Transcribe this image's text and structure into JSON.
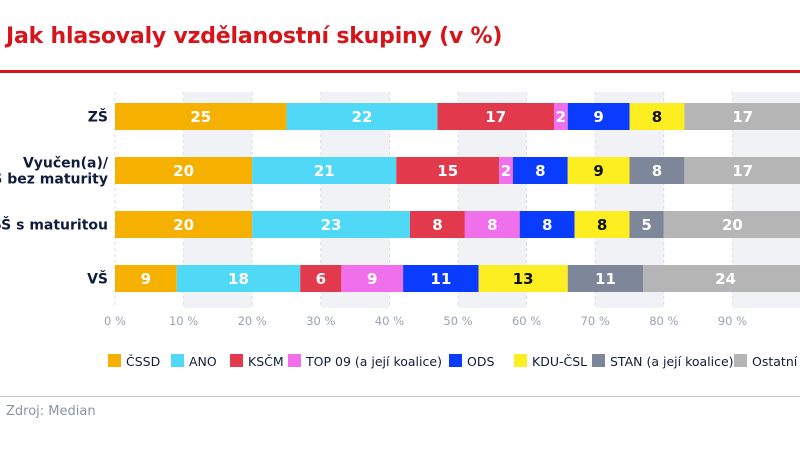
{
  "title": "Jak hlasovaly vzdělanostní skupiny (v %)",
  "source": "Zdroj: Median",
  "chart_data": {
    "type": "bar",
    "orientation": "horizontal",
    "stacked": true,
    "categories": [
      "ZŠ",
      "Vyučen(a)/\nSŠ bez maturity",
      "SŠ s maturitou",
      "VŠ"
    ],
    "xlim": [
      0,
      100
    ],
    "x_ticks": [
      "0 %",
      "10 %",
      "20 %",
      "30 %",
      "40 %",
      "50 %",
      "60 %",
      "70 %",
      "80 %",
      "90 %"
    ],
    "legend_position": "bottom",
    "series": [
      {
        "name": "ČSSD",
        "color": "#f6b000",
        "label_color": "#ffffff",
        "values": [
          25,
          20,
          20,
          9
        ]
      },
      {
        "name": "ANO",
        "color": "#4fd9f7",
        "label_color": "#ffffff",
        "values": [
          22,
          21,
          23,
          18
        ]
      },
      {
        "name": "KSČM",
        "color": "#e23a4c",
        "label_color": "#ffffff",
        "values": [
          17,
          15,
          8,
          6
        ]
      },
      {
        "name": "TOP 09 (a její koalice)",
        "color": "#f070ec",
        "label_color": "#ffffff",
        "values": [
          2,
          2,
          8,
          9
        ]
      },
      {
        "name": "ODS",
        "color": "#0a3cff",
        "label_color": "#ffffff",
        "values": [
          9,
          8,
          8,
          11
        ]
      },
      {
        "name": "KDU-ČSL",
        "color": "#fcee21",
        "label_color": "#111111",
        "values": [
          8,
          9,
          8,
          13
        ]
      },
      {
        "name": "STAN (a její koalice)",
        "color": "#7d8799",
        "label_color": "#ffffff",
        "values": [
          0,
          8,
          5,
          11
        ]
      },
      {
        "name": "Ostatní",
        "color": "#b5b5b5",
        "label_color": "#ffffff",
        "values": [
          17,
          17,
          20,
          24
        ]
      }
    ]
  }
}
